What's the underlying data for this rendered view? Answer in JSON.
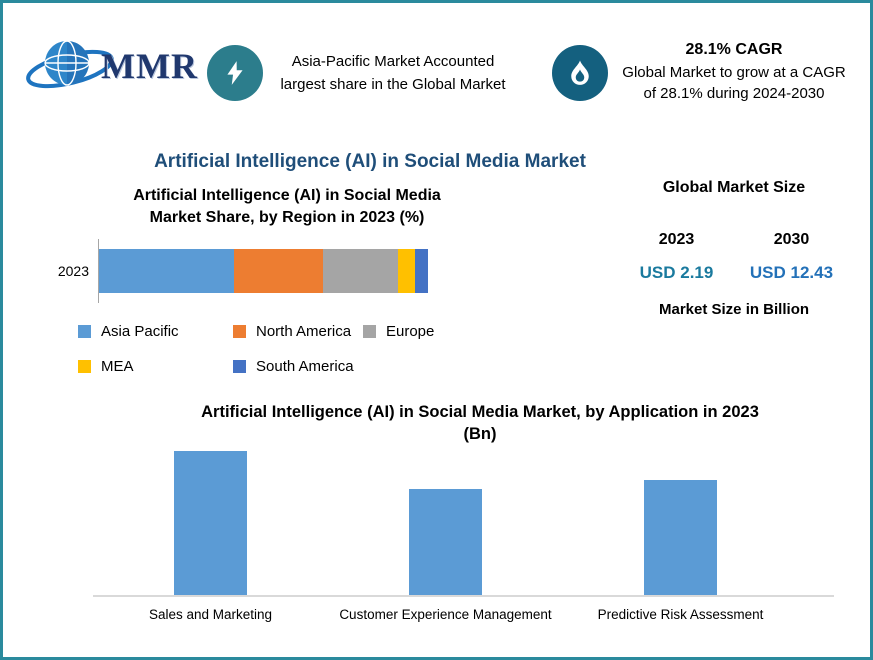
{
  "page": {
    "border_color": "#2a8a9d",
    "title_color": "#1f4e79"
  },
  "header": {
    "logo": {
      "text": "MMR"
    },
    "highlight1": {
      "icon": "lightning-icon",
      "circle_color": "#2c7d8c",
      "text": "Asia-Pacific Market Accounted largest share in the Global Market"
    },
    "highlight2": {
      "icon": "flame-icon",
      "circle_color": "#14607f",
      "title": "28.1% CAGR",
      "text": "Global Market to grow at a CAGR of 28.1% during 2024-2030"
    }
  },
  "main_title": "Artificial Intelligence (AI) in Social Media Market",
  "market_size_panel": {
    "title": "Global Market Size",
    "columns": [
      {
        "year": "2023",
        "value": "USD 2.19",
        "color": "#1a7a9e"
      },
      {
        "year": "2030",
        "value": "USD 12.43",
        "color": "#2371b8"
      }
    ],
    "note": "Market Size in Billion"
  },
  "chart_data": [
    {
      "type": "bar",
      "orientation": "horizontal_stacked",
      "title": "Artificial Intelligence (AI) in Social Media\nMarket Share, by Region in 2023 (%)",
      "categories": [
        "2023"
      ],
      "series": [
        {
          "name": "Asia Pacific",
          "values": [
            41
          ],
          "color": "#5b9bd5"
        },
        {
          "name": "North America",
          "values": [
            27
          ],
          "color": "#ed7d31"
        },
        {
          "name": "Europe",
          "values": [
            23
          ],
          "color": "#a5a5a5"
        },
        {
          "name": "MEA",
          "values": [
            5
          ],
          "color": "#ffc000"
        },
        {
          "name": "South America",
          "values": [
            4
          ],
          "color": "#4472c4"
        }
      ],
      "xlim": [
        0,
        100
      ],
      "legend_position": "bottom",
      "grid": false
    },
    {
      "type": "bar",
      "title": "Artificial Intelligence (AI) in Social Media Market, by Application in 2023\n(Bn)",
      "categories": [
        "Sales and Marketing",
        "Customer Experience Management",
        "Predictive Risk Assessment"
      ],
      "values": [
        0.9,
        0.66,
        0.72
      ],
      "ylim": [
        0,
        1
      ],
      "bar_color": "#5b9bd5",
      "xlabel": "",
      "ylabel": "",
      "grid": false,
      "legend_position": "none"
    }
  ]
}
